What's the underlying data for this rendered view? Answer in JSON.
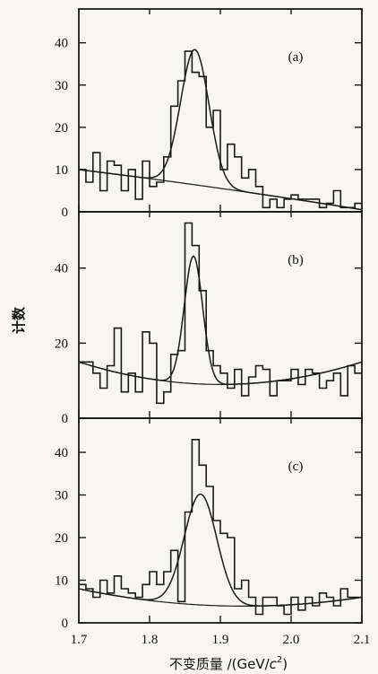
{
  "chart_data": {
    "type": "histogram",
    "xlabel_text": "不变质量 /(GeV/",
    "xlabel_unit_c": "c",
    "xlabel_unit_exp": "2",
    "xlabel_close": ")",
    "ylabel": "计数",
    "xlim": [
      1.7,
      2.1
    ],
    "x_ticks": [
      "1.7",
      "1.8",
      "1.9",
      "2.0",
      "2.1"
    ],
    "bin_width": 0.01,
    "bin_starts_at": 1.7,
    "panels": [
      {
        "label": "(a)",
        "ylim": [
          0,
          48
        ],
        "y_ticks": [
          0,
          10,
          20,
          30,
          40
        ],
        "y_tick_labels": [
          "0",
          "10",
          "20",
          "30",
          "40"
        ],
        "counts": [
          10,
          7,
          14,
          5,
          12,
          11,
          5,
          10,
          3,
          12,
          6,
          7,
          13,
          25,
          31,
          38,
          33,
          32,
          20,
          24,
          10,
          16,
          13,
          8,
          10,
          6,
          1,
          3,
          1,
          3,
          4,
          3,
          3,
          3,
          1,
          2,
          5,
          1,
          1,
          2
        ],
        "fit": {
          "peak_x": 1.864,
          "amplitude": 32,
          "sigma": 0.02,
          "bg_start": 10,
          "bg_end": 0.5,
          "bg_curve": 0.3
        }
      },
      {
        "label": "(b)",
        "ylim": [
          0,
          55
        ],
        "y_ticks": [
          0,
          20,
          40
        ],
        "y_tick_labels": [
          "0",
          "20",
          "40"
        ],
        "counts": [
          15,
          15,
          12,
          8,
          14,
          24,
          7,
          12,
          7,
          23,
          20,
          4,
          7,
          17,
          18,
          52,
          46,
          34,
          18,
          14,
          12,
          8,
          13,
          6,
          11,
          14,
          13,
          6,
          10,
          10,
          13,
          9,
          13,
          12,
          8,
          10,
          12,
          6,
          14,
          12
        ],
        "fit": {
          "peak_x": 1.862,
          "amplitude": 34,
          "sigma": 0.013,
          "bg_start": 15,
          "bg_end": 15,
          "bg_curve": -6
        }
      },
      {
        "label": "(c)",
        "ylim": [
          0,
          48
        ],
        "y_ticks": [
          0,
          10,
          20,
          30,
          40
        ],
        "y_tick_labels": [
          "0",
          "10",
          "20",
          "30",
          "40"
        ],
        "counts": [
          9,
          8,
          6,
          10,
          7,
          11,
          8,
          7,
          6,
          9,
          12,
          9,
          12,
          17,
          5,
          26,
          43,
          37,
          32,
          24,
          21,
          20,
          8,
          10,
          6,
          2,
          6,
          6,
          4,
          2,
          6,
          3,
          6,
          4,
          7,
          6,
          4,
          8,
          6,
          6
        ],
        "fit": {
          "peak_x": 1.872,
          "amplitude": 26,
          "sigma": 0.023,
          "bg_start": 8,
          "bg_end": 6,
          "bg_curve": -3
        }
      }
    ]
  }
}
